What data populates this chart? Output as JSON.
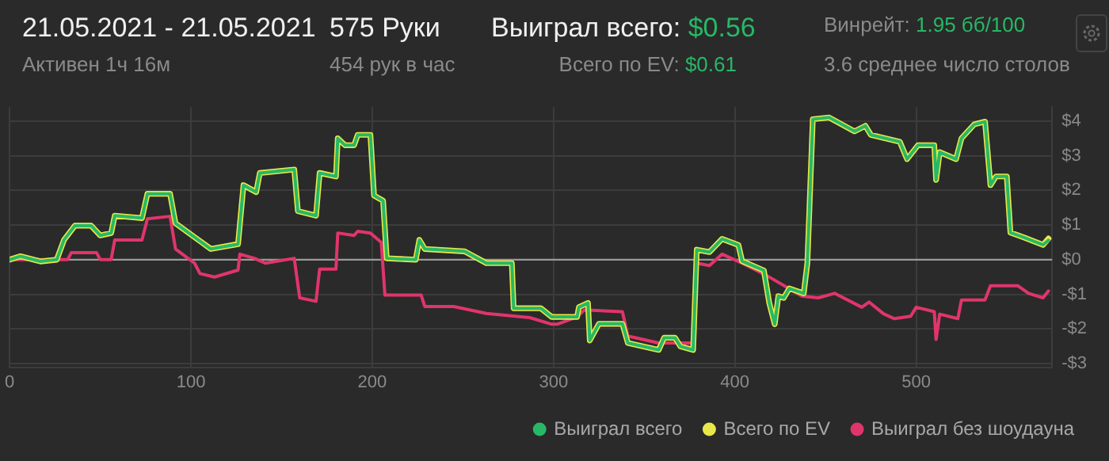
{
  "chart_data": {
    "type": "line",
    "title": "21.05.2021 - 21.05.2021",
    "subtitle": "Активен 1ч 16м",
    "annotations": [
      "575 Руки",
      "454 рук в час",
      "Выиграл всего: $0.56",
      "Всего по EV: $0.61",
      "Винрейт: 1.95 бб/100",
      "3.6 среднее число столов"
    ],
    "xlim": [
      0,
      575
    ],
    "xticks": [
      0,
      100,
      200,
      300,
      400,
      500
    ],
    "ylim": [
      -3.1,
      4.4
    ],
    "yticks": [
      {
        "value": -3,
        "label": "-$3"
      },
      {
        "value": -2,
        "label": "-$2"
      },
      {
        "value": -1,
        "label": "-$1"
      },
      {
        "value": 0,
        "label": "$0"
      },
      {
        "value": 1,
        "label": "$1"
      },
      {
        "value": 2,
        "label": "$2"
      },
      {
        "value": 3,
        "label": "$3"
      },
      {
        "value": 4,
        "label": "$4"
      }
    ],
    "grid": true,
    "legend": "bottom right",
    "marker": "none",
    "line_style": "solid",
    "ref_lines": [
      {
        "axis": "y",
        "value": 0,
        "color": "#9a9a9a"
      }
    ],
    "series": [
      {
        "name": "Выиграл всего",
        "color": "#27b865",
        "x": [
          0,
          6,
          17,
          26,
          30,
          36,
          45,
          50,
          56,
          58,
          73,
          76,
          88.5,
          91.5,
          102,
          111,
          126,
          129,
          136,
          138,
          157,
          159,
          169,
          171,
          180,
          181,
          185,
          190,
          192,
          199,
          201,
          206,
          208,
          224,
          226,
          229,
          251,
          263,
          277,
          278,
          293,
          299,
          302,
          313,
          314,
          319,
          320,
          325,
          338,
          341,
          358,
          361,
          367,
          370,
          377,
          379,
          386,
          393,
          402,
          404,
          416,
          419,
          422,
          424,
          427,
          430,
          438,
          440,
          443,
          452,
          466,
          472,
          475,
          491,
          495,
          501,
          510,
          511,
          513,
          522,
          525,
          532,
          538,
          541,
          544,
          550,
          552,
          559,
          570,
          573
        ],
        "values": [
          0,
          0.1,
          -0.05,
          0,
          0.57,
          0.98,
          0.98,
          0.7,
          0.77,
          1.27,
          1.2,
          1.9,
          1.9,
          1.05,
          0.65,
          0.31,
          0.45,
          2.15,
          1.95,
          2.5,
          2.6,
          1.4,
          1.27,
          2.5,
          2.4,
          3.5,
          3.3,
          3.3,
          3.6,
          3.6,
          1.85,
          1.7,
          0.04,
          0,
          0.57,
          0.31,
          0.24,
          -0.1,
          -0.1,
          -1.4,
          -1.4,
          -1.65,
          -1.65,
          -1.65,
          -1.37,
          -1.25,
          -2.33,
          -1.85,
          -1.85,
          -2.4,
          -2.6,
          -2.25,
          -2.25,
          -2.5,
          -2.6,
          0.29,
          0.22,
          0.6,
          0.42,
          -0.04,
          -0.31,
          -1.25,
          -1.86,
          -1.05,
          -1.1,
          -0.83,
          -0.97,
          -0.1,
          4.05,
          4.1,
          3.7,
          3.86,
          3.6,
          3.4,
          2.9,
          3.3,
          3.3,
          2.3,
          3.1,
          2.9,
          3.5,
          3.9,
          3.98,
          2.15,
          2.4,
          2.4,
          0.78,
          0.65,
          0.43,
          0.56
        ]
      },
      {
        "name": "Всего по EV",
        "color": "#e8e84a",
        "x": [
          0,
          6,
          17,
          26,
          30,
          36,
          45,
          50,
          56,
          58,
          73,
          76,
          88.5,
          91.5,
          102,
          111,
          126,
          129,
          136,
          138,
          157,
          159,
          169,
          171,
          180,
          181,
          185,
          190,
          192,
          199,
          201,
          206,
          208,
          224,
          226,
          229,
          251,
          263,
          277,
          278,
          293,
          299,
          302,
          313,
          314,
          319,
          320,
          325,
          338,
          341,
          358,
          361,
          367,
          370,
          377,
          379,
          386,
          393,
          402,
          404,
          416,
          419,
          422,
          424,
          427,
          430,
          438,
          440,
          443,
          452,
          466,
          472,
          475,
          491,
          495,
          501,
          510,
          511,
          513,
          522,
          525,
          532,
          538,
          541,
          544,
          550,
          552,
          559,
          570,
          573
        ],
        "values": [
          0,
          0.1,
          -0.05,
          0,
          0.57,
          0.98,
          0.98,
          0.7,
          0.77,
          1.27,
          1.2,
          1.9,
          1.9,
          1.05,
          0.65,
          0.31,
          0.45,
          2.15,
          1.95,
          2.5,
          2.6,
          1.4,
          1.27,
          2.5,
          2.4,
          3.5,
          3.3,
          3.3,
          3.6,
          3.6,
          1.85,
          1.7,
          0.04,
          0,
          0.57,
          0.31,
          0.24,
          -0.1,
          -0.1,
          -1.4,
          -1.4,
          -1.65,
          -1.65,
          -1.65,
          -1.37,
          -1.25,
          -2.33,
          -1.85,
          -1.85,
          -2.4,
          -2.6,
          -2.25,
          -2.25,
          -2.5,
          -2.6,
          0.29,
          0.22,
          0.6,
          0.42,
          -0.04,
          -0.31,
          -1.25,
          -1.86,
          -1.05,
          -1.1,
          -0.83,
          -0.97,
          -0.1,
          4.05,
          4.1,
          3.7,
          3.86,
          3.6,
          3.4,
          2.9,
          3.3,
          3.3,
          2.3,
          3.1,
          2.9,
          3.5,
          3.9,
          3.98,
          2.15,
          2.4,
          2.4,
          0.78,
          0.65,
          0.43,
          0.61
        ]
      },
      {
        "name": "Выиграл без шоудауна",
        "color": "#e0356b",
        "x": [
          0,
          32,
          34,
          48,
          50,
          56,
          58,
          73,
          76,
          88.5,
          91.5,
          102,
          105,
          113,
          126,
          127,
          135,
          141,
          157,
          160,
          169,
          171,
          180,
          181,
          190,
          192,
          199,
          205,
          207,
          227,
          229,
          245,
          263,
          287,
          299,
          302,
          313,
          317,
          338,
          341,
          358,
          377,
          379,
          386,
          393,
          404,
          417,
          437,
          446,
          455,
          470,
          474,
          482,
          488,
          497,
          500,
          510,
          511,
          513,
          523,
          525,
          538,
          541,
          556,
          562,
          570,
          573
        ],
        "values": [
          0,
          0,
          0.2,
          0.2,
          0,
          0,
          0.57,
          0.57,
          1.18,
          1.25,
          0.31,
          -0.1,
          -0.4,
          -0.5,
          -0.3,
          0.16,
          0.04,
          -0.1,
          0.04,
          -1.1,
          -1.2,
          -0.27,
          -0.27,
          0.77,
          0.7,
          0.82,
          0.77,
          0.5,
          -1.02,
          -1.02,
          -1.35,
          -1.35,
          -1.55,
          -1.67,
          -1.86,
          -1.86,
          -1.65,
          -1.45,
          -1.5,
          -2.2,
          -2.4,
          -2.4,
          -0.1,
          -0.17,
          0.16,
          -0.1,
          -0.44,
          -1.05,
          -1.1,
          -0.97,
          -1.37,
          -1.22,
          -1.56,
          -1.7,
          -1.63,
          -1.37,
          -1.5,
          -2.3,
          -1.57,
          -1.7,
          -1.16,
          -1.16,
          -0.75,
          -0.75,
          -0.97,
          -1.1,
          -0.9
        ]
      }
    ]
  }
}
